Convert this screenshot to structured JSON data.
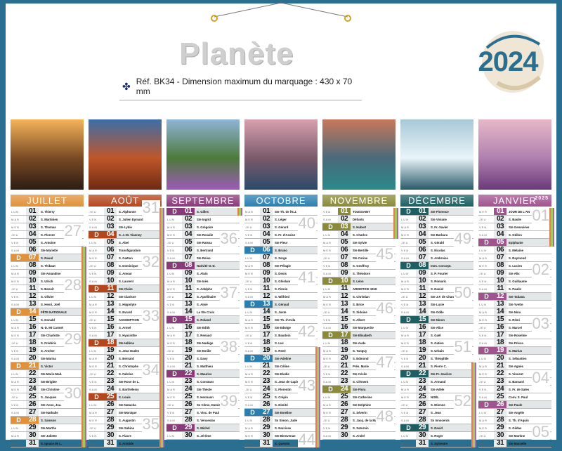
{
  "header": {
    "title": "Planète",
    "reference": "Réf. BK34 - Dimension maximum du marquage : 430 x 70 mm",
    "year": "2024",
    "next_year": "2025"
  },
  "colors": {
    "frame": "#2a6f90",
    "holiday_zones": [
      "#e87b5a",
      "#a6c85a",
      "#a36ab0"
    ]
  },
  "weekdays": [
    "DIM",
    "LUN",
    "MAR",
    "MER",
    "JEU",
    "VEN",
    "SAM"
  ],
  "sunday_letter": "D",
  "months": [
    {
      "name": "JUILLET",
      "color": "#e0913a",
      "year": 2024,
      "month": 7,
      "photo": [
        "#f5b45a",
        "#7a4a24",
        "#2b1d14"
      ],
      "weeks": [
        "27",
        "28",
        "29",
        "30"
      ],
      "holidays": [
        6,
        31
      ],
      "saints": [
        "S. Thierry",
        "S. Martinien",
        "S. Thomas",
        "S. Florent",
        "S. Antoine",
        "Ste Mariette",
        "S. Raoul",
        "S. Thibaut",
        "Ste Amandine",
        "S. Ulrich",
        "S. Benoît",
        "S. Olivier",
        "S. Henri, Joël",
        "FÊTE NATIONALE",
        "S. Donald",
        "N.-D. Mt Carmel",
        "Ste Charlotte",
        "S. Frédéric",
        "S. Arsène",
        "Ste Marina",
        "S. Victor",
        "Ste Marie-Mad.",
        "Ste Brigitte",
        "Ste Christine",
        "S. Jacques",
        "Ste Anne, Joa.",
        "Ste Nathalie",
        "S. Samson",
        "Ste Marthe",
        "Ste Juliette",
        "S. Ignace de L."
      ]
    },
    {
      "name": "AOÛT",
      "color": "#b5461c",
      "year": 2024,
      "month": 8,
      "photo": [
        "#3b6ea8",
        "#c0562a",
        "#6e2a12"
      ],
      "weeks": [
        "31",
        "32",
        "33",
        "34",
        "35"
      ],
      "holidays": [
        1,
        31
      ],
      "saints": [
        "S. Alphonse",
        "S. Julien Eymard",
        "Ste Lydie",
        "S. J.-M. Vianney",
        "S. Abel",
        "Transfiguration",
        "S. Gaëtan",
        "S. Dominique",
        "S. Amour",
        "S. Laurent",
        "Ste Claire",
        "Ste Clarisse",
        "S. Hippolyte",
        "S. Evrard",
        "ASSOMPTION",
        "S. Armel",
        "S. Hyacinthe",
        "Ste Hélène",
        "S. Jean Eudes",
        "S. Bernard",
        "S. Christophe",
        "S. Fabrice",
        "Ste Rose de L.",
        "S. Barthélemy",
        "S. Louis",
        "Ste Natacha",
        "Ste Monique",
        "S. Augustin",
        "Ste Sabine",
        "S. Fiacre",
        "S. Aristide"
      ]
    },
    {
      "name": "SEPTEMBRE",
      "color": "#8a3a7a",
      "year": 2024,
      "month": 9,
      "photo": [
        "#8fb4d8",
        "#4d7a3a",
        "#9c5ab8"
      ],
      "weeks": [
        "36",
        "37",
        "38",
        "39"
      ],
      "holidays": [
        1,
        1
      ],
      "saints": [
        "S. Gilles",
        "Ste Ingrid",
        "S. Grégoire",
        "Ste Rosalie",
        "Ste Raïssa",
        "S. Bertrand",
        "Ste Reine",
        "Nativité N.-D.",
        "S. Alain",
        "Ste Inès",
        "S. Adelphe",
        "S. Apollinaire",
        "S. Aimé",
        "La Ste Croix",
        "S. Roland",
        "Ste Edith",
        "S. Renaud",
        "Ste Nadège",
        "Ste Emilie",
        "S. Davy",
        "S. Matthieu",
        "S. Maurice",
        "S. Constant",
        "Ste Thècle",
        "S. Hermann",
        "Ss Côme, Damien",
        "S. Vinc. de Paul",
        "S. Venceslas",
        "S. Michel",
        "S. Jérôme"
      ]
    },
    {
      "name": "OCTOBRE",
      "color": "#2b7fb0",
      "year": 2024,
      "month": 10,
      "photo": [
        "#d9a0b0",
        "#7a5a6a",
        "#2a4a6a"
      ],
      "weeks": [
        "40",
        "41",
        "42",
        "43",
        "44"
      ],
      "holidays": [
        19,
        31
      ],
      "saints": [
        "Ste Th. de l'E.J.",
        "S. Léger",
        "S. Gérard",
        "S. Fr. d'Assise",
        "Ste Fleur",
        "S. Bruno",
        "S. Serge",
        "Ste Pélagie",
        "S. Denis",
        "S. Ghislain",
        "S. Firmin",
        "S. Wilfried",
        "S. Géraud",
        "S. Juste",
        "Ste Th. d'Avila",
        "Ste Edwige",
        "S. Baudoin",
        "S. Luc",
        "S. René",
        "Ste Adeline",
        "Ste Céline",
        "Ste Elodie",
        "S. Jean de Capistran",
        "S. Florentin",
        "S. Crépin",
        "S. Dimitri",
        "Ste Emeline",
        "Ss Simon, Jude",
        "S. Narcisse",
        "Ste Bienvenue",
        "S. Quentin"
      ]
    },
    {
      "name": "NOVEMBRE",
      "color": "#8a8a3a",
      "year": 2024,
      "month": 11,
      "photo": [
        "#c8785a",
        "#4a6a7a",
        "#2a8a8a"
      ],
      "weeks": [
        "45",
        "46",
        "47",
        "48"
      ],
      "holidays": [
        1,
        4
      ],
      "saints": [
        "TOUSSAINT",
        "Défunts",
        "S. Hubert",
        "S. Charles",
        "Ste Sylvie",
        "Ste Bertille",
        "Ste Carine",
        "S. Geoffroy",
        "S. Théodore",
        "S. Léon",
        "ARMISTICE 1918",
        "S. Christian",
        "S. Brice",
        "S. Sidoine",
        "S. Albert",
        "Ste Marguerite",
        "Ste Elisabeth",
        "Ste Aude",
        "S. Tanguy",
        "S. Edmond",
        "Prés. Marie",
        "Ste Cécile",
        "S. Clément",
        "Ste Flora",
        "Ste Catherine",
        "Ste Delphine",
        "S. Séverin",
        "S. Jacq. de la Marche",
        "S. Saturnin",
        "S. André"
      ]
    },
    {
      "name": "DÉCEMBRE",
      "color": "#1d5f63",
      "year": 2024,
      "month": 12,
      "photo": [
        "#a8c8d8",
        "#e8f4f8",
        "#2a5a6a"
      ],
      "weeks": [
        "49",
        "50",
        "51",
        "52"
      ],
      "holidays": [
        21,
        31
      ],
      "saints": [
        "Ste Florence",
        "Ste Viviane",
        "S. Fr.-Xavier",
        "Ste Barbara",
        "S. Gérald",
        "S. Nicolas",
        "S. Ambroise",
        "Imm. Concept.",
        "S. P. Fourier",
        "S. Romaric",
        "S. Daniel",
        "Ste J.F. de Chantal",
        "Ste Lucie",
        "Ste Odile",
        "Ste Ninon",
        "Ste Alice",
        "S. Gaël",
        "S. Gatien",
        "S. Urbain",
        "S. Théophile",
        "S. Pierre C.",
        "Ste Fr.-Xavière",
        "S. Armand",
        "Ste Adèle",
        "NOËL",
        "S. Etienne",
        "S. Jean",
        "Ss Innocents",
        "S. David",
        "S. Roger",
        "S. Sylvestre"
      ]
    },
    {
      "name": "JANVIER",
      "color": "#a0538f",
      "year": 2025,
      "month": 1,
      "photo": [
        "#e8b8c8",
        "#b080b0",
        "#6a3a7a"
      ],
      "weeks": [
        "01",
        "02",
        "03",
        "04",
        "05"
      ],
      "holidays": [
        1,
        5
      ],
      "saints": [
        "JOUR DE L'AN",
        "S. Basile",
        "Ste Geneviève",
        "S. Odilon",
        "Epiphanie",
        "S. Mélaine",
        "S. Raymond",
        "S. Lucien",
        "Ste Alix",
        "S. Guillaume",
        "S. Paulin",
        "Ste Tatiana",
        "Ste Yvette",
        "Ste Nina",
        "S. Rémi",
        "S. Marcel",
        "Ste Roseline",
        "Ste Prisca",
        "S. Marius",
        "S. Sébastien",
        "Ste Agnès",
        "S. Vincent",
        "S. Barnard",
        "S. Fr. de Sales",
        "Conv. S. Paul",
        "Ste Paule",
        "Ste Angèle",
        "S. Th. d'Aquin",
        "S. Gildas",
        "Ste Martine",
        "Ste Marcelle"
      ]
    }
  ]
}
